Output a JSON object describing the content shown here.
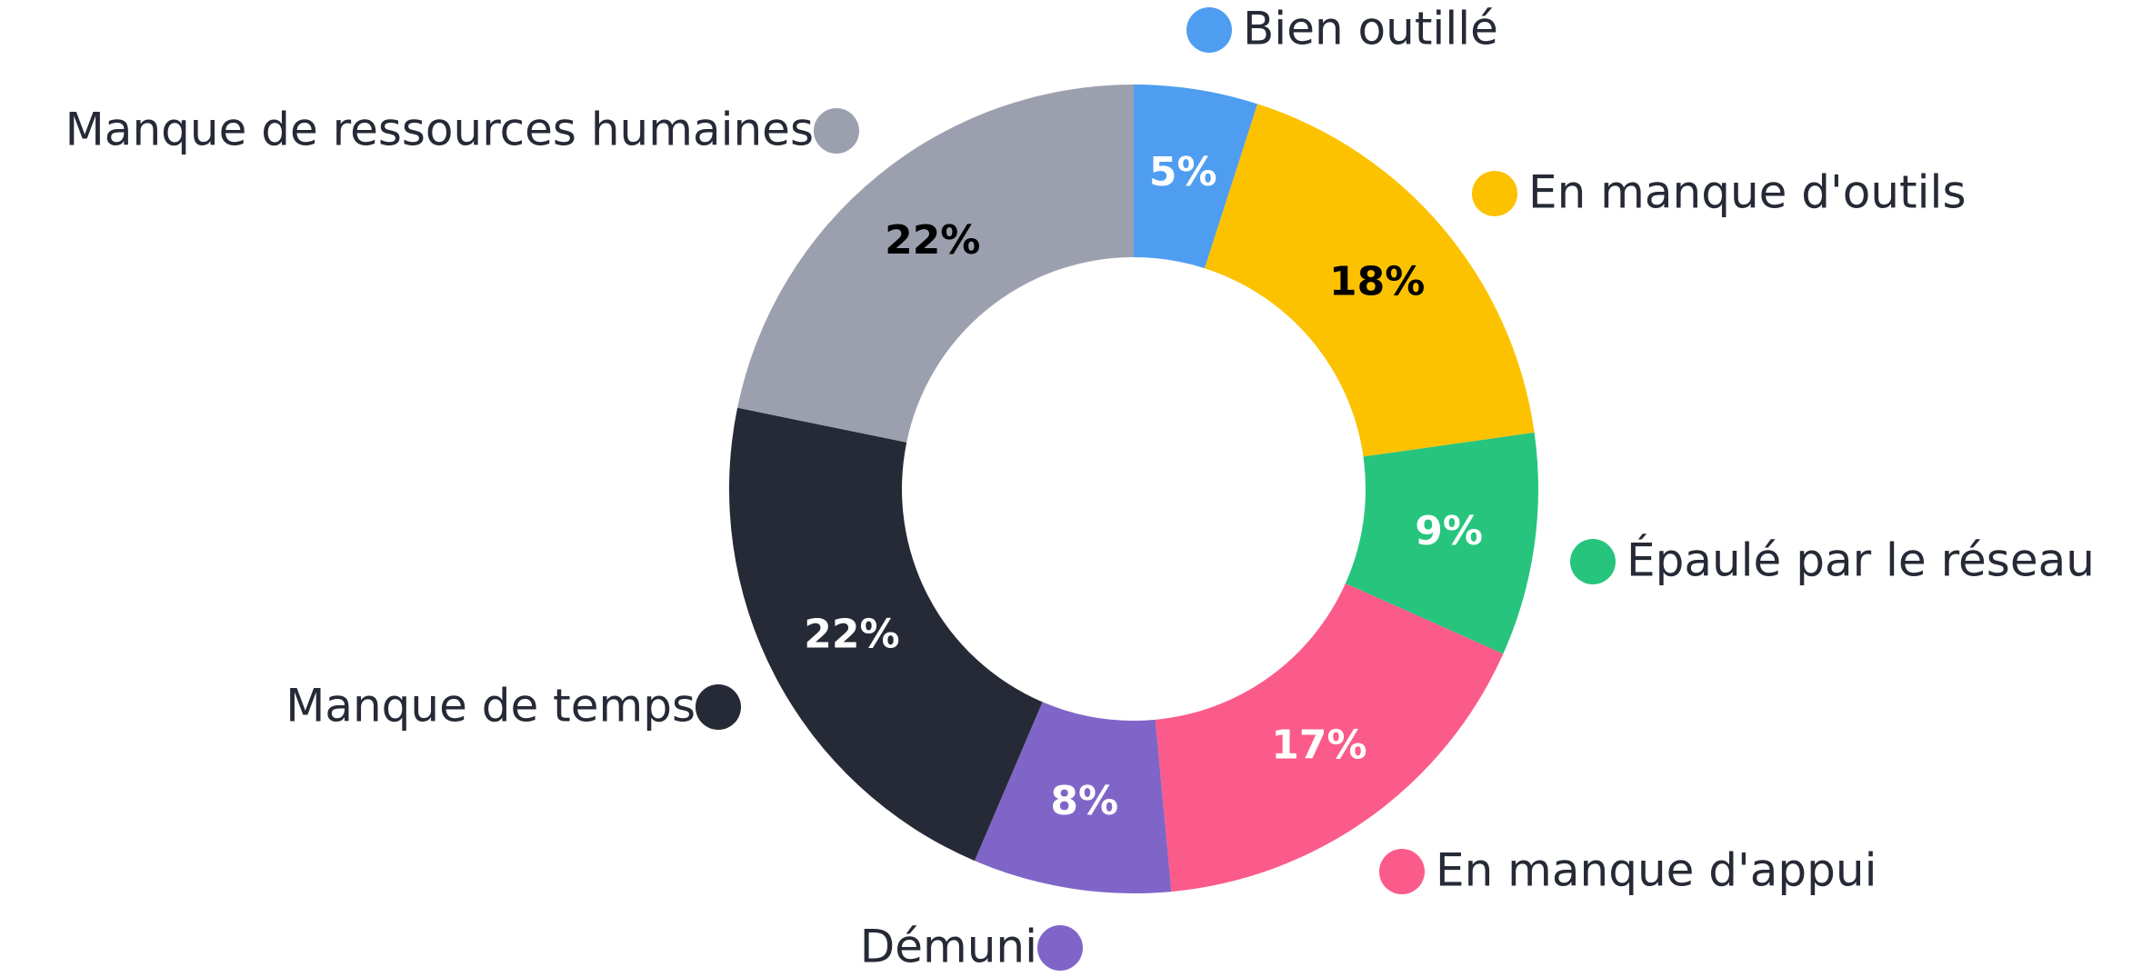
{
  "chart_data": {
    "type": "donut",
    "categories": [
      "Bien outillé",
      "En manque d'outils",
      "Épaulé par le réseau",
      "En manque d'appui",
      "Démuni",
      "Manque de temps",
      "Manque de ressources humaines"
    ],
    "values": [
      5,
      18,
      9,
      17,
      8,
      22,
      22
    ],
    "value_labels": [
      "5%",
      "18%",
      "9%",
      "17%",
      "8%",
      "22%",
      "22%"
    ],
    "colors": [
      "#4f9df0",
      "#fcc200",
      "#27c47e",
      "#fb5b8a",
      "#8065c8",
      "#262a36",
      "#9ca0ae"
    ],
    "legend": "around"
  }
}
